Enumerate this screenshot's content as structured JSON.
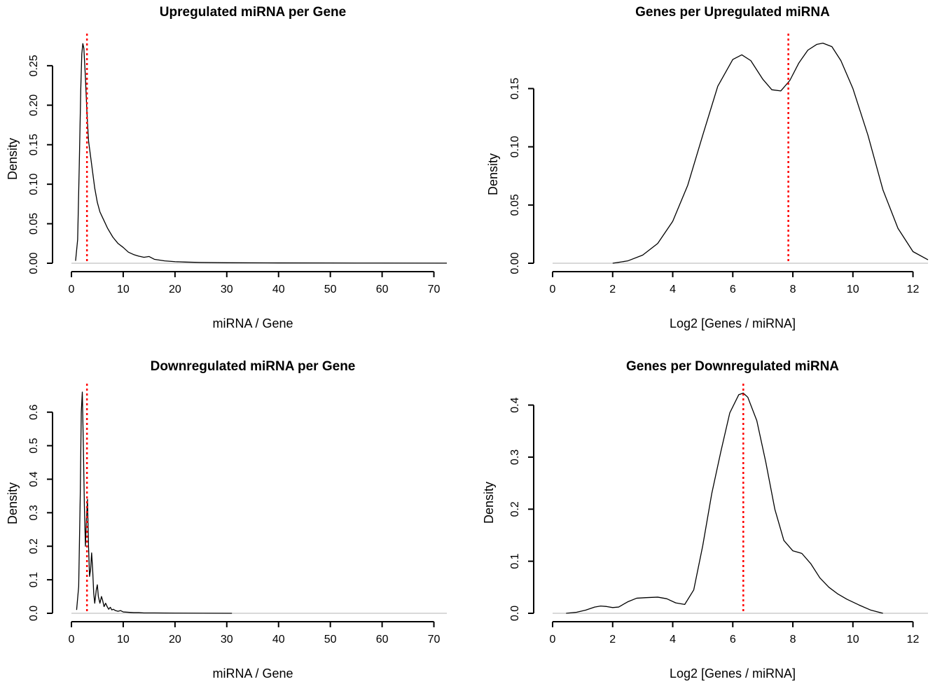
{
  "chart_data": [
    {
      "type": "line",
      "title": "Upregulated miRNA per Gene",
      "xlabel": "miRNA / Gene",
      "ylabel": "Density",
      "xlim": [
        0,
        72.5
      ],
      "ylim": [
        0,
        0.28
      ],
      "xticks": [
        0,
        10,
        20,
        30,
        40,
        50,
        60,
        70
      ],
      "xtick_labels": [
        "0",
        "10",
        "20",
        "30",
        "40",
        "50",
        "60",
        "70"
      ],
      "yticks": [
        0,
        0.05,
        0.1,
        0.15,
        0.2,
        0.25
      ],
      "ytick_labels": [
        "0.00",
        "0.05",
        "0.10",
        "0.15",
        "0.20",
        "0.25"
      ],
      "grid": false,
      "baseline": 0,
      "vline": 3.0,
      "series": [
        {
          "color": "#000000",
          "x": [
            0.8,
            1.2,
            1.5,
            1.8,
            2.0,
            2.2,
            2.4,
            2.7,
            3.0,
            3.3,
            3.6,
            4.0,
            4.5,
            5.0,
            5.5,
            6.0,
            7.0,
            8.0,
            9.0,
            10.0,
            11.0,
            12.0,
            13.0,
            14.0,
            15.0,
            16.0,
            18.0,
            20.0,
            22.0,
            25.0,
            30.0,
            40.0,
            50.0,
            60.0,
            72.5
          ],
          "y": [
            0.003,
            0.03,
            0.12,
            0.22,
            0.265,
            0.278,
            0.272,
            0.235,
            0.19,
            0.155,
            0.14,
            0.12,
            0.095,
            0.077,
            0.065,
            0.058,
            0.044,
            0.033,
            0.025,
            0.02,
            0.014,
            0.011,
            0.009,
            0.0075,
            0.0085,
            0.005,
            0.003,
            0.002,
            0.0015,
            0.001,
            0.0006,
            0.0004,
            0.0003,
            0.0002,
            0.0001
          ]
        }
      ]
    },
    {
      "type": "line",
      "title": "Genes per Upregulated miRNA",
      "xlabel": "Log2 [Genes / miRNA]",
      "ylabel": "Density",
      "xlim": [
        0,
        12.5
      ],
      "ylim": [
        0,
        0.19
      ],
      "xticks": [
        0,
        2,
        4,
        6,
        8,
        10,
        12
      ],
      "xtick_labels": [
        "0",
        "2",
        "4",
        "6",
        "8",
        "10",
        "12"
      ],
      "yticks": [
        0,
        0.05,
        0.1,
        0.15
      ],
      "ytick_labels": [
        "0.00",
        "0.05",
        "0.10",
        "0.15"
      ],
      "grid": false,
      "baseline": 0,
      "vline": 7.85,
      "series": [
        {
          "color": "#000000",
          "x": [
            2.0,
            2.5,
            3.0,
            3.5,
            4.0,
            4.5,
            5.0,
            5.5,
            6.0,
            6.3,
            6.6,
            7.0,
            7.3,
            7.6,
            7.9,
            8.2,
            8.5,
            8.8,
            9.0,
            9.3,
            9.6,
            10.0,
            10.5,
            11.0,
            11.5,
            12.0,
            12.5
          ],
          "y": [
            0.0,
            0.002,
            0.007,
            0.017,
            0.036,
            0.067,
            0.11,
            0.152,
            0.175,
            0.179,
            0.174,
            0.158,
            0.149,
            0.148,
            0.157,
            0.172,
            0.183,
            0.188,
            0.189,
            0.186,
            0.174,
            0.15,
            0.11,
            0.063,
            0.03,
            0.01,
            0.003
          ]
        }
      ]
    },
    {
      "type": "line",
      "title": "Downregulated miRNA per Gene",
      "xlabel": "miRNA / Gene",
      "ylabel": "Density",
      "xlim": [
        0,
        72.5
      ],
      "ylim": [
        0,
        0.66
      ],
      "xticks": [
        0,
        10,
        20,
        30,
        40,
        50,
        60,
        70
      ],
      "xtick_labels": [
        "0",
        "10",
        "20",
        "30",
        "40",
        "50",
        "60",
        "70"
      ],
      "yticks": [
        0,
        0.1,
        0.2,
        0.3,
        0.4,
        0.5,
        0.6
      ],
      "ytick_labels": [
        "0.0",
        "0.1",
        "0.2",
        "0.3",
        "0.4",
        "0.5",
        "0.6"
      ],
      "grid": false,
      "baseline": 0,
      "vline": 3.0,
      "series": [
        {
          "color": "#000000",
          "x": [
            1.0,
            1.4,
            1.7,
            1.9,
            2.1,
            2.3,
            2.5,
            2.7,
            2.9,
            3.1,
            3.3,
            3.5,
            3.7,
            3.9,
            4.1,
            4.3,
            4.5,
            4.8,
            5.0,
            5.2,
            5.5,
            5.8,
            6.0,
            6.3,
            6.6,
            6.9,
            7.2,
            7.5,
            7.8,
            8.1,
            8.5,
            9.0,
            9.5,
            10.0,
            11.0,
            12.0,
            13.0,
            14.0,
            16.0,
            20.0,
            25.0,
            31.0
          ],
          "y": [
            0.01,
            0.08,
            0.35,
            0.6,
            0.66,
            0.5,
            0.32,
            0.2,
            0.28,
            0.34,
            0.2,
            0.11,
            0.13,
            0.18,
            0.13,
            0.06,
            0.03,
            0.07,
            0.085,
            0.05,
            0.03,
            0.05,
            0.04,
            0.02,
            0.03,
            0.02,
            0.012,
            0.018,
            0.01,
            0.012,
            0.008,
            0.006,
            0.008,
            0.004,
            0.003,
            0.002,
            0.002,
            0.001,
            0.001,
            0.0005,
            0.0003,
            0.0
          ]
        }
      ]
    },
    {
      "type": "line",
      "title": "Genes per Downregulated miRNA",
      "xlabel": "Log2 [Genes / miRNA]",
      "ylabel": "Density",
      "xlim": [
        0,
        12.5
      ],
      "ylim": [
        0,
        0.425
      ],
      "xticks": [
        0,
        2,
        4,
        6,
        8,
        10,
        12
      ],
      "xtick_labels": [
        "0",
        "2",
        "4",
        "6",
        "8",
        "10",
        "12"
      ],
      "yticks": [
        0,
        0.1,
        0.2,
        0.3,
        0.4
      ],
      "ytick_labels": [
        "0.0",
        "0.1",
        "0.2",
        "0.3",
        "0.4"
      ],
      "grid": false,
      "baseline": 0,
      "vline": 6.35,
      "series": [
        {
          "color": "#000000",
          "x": [
            0.45,
            0.8,
            1.1,
            1.4,
            1.6,
            1.8,
            2.0,
            2.2,
            2.5,
            2.8,
            3.1,
            3.5,
            3.8,
            4.1,
            4.4,
            4.7,
            5.0,
            5.3,
            5.6,
            5.9,
            6.2,
            6.35,
            6.5,
            6.8,
            7.1,
            7.4,
            7.7,
            8.0,
            8.3,
            8.6,
            8.9,
            9.2,
            9.5,
            9.8,
            10.2,
            10.6,
            11.0
          ],
          "y": [
            0.0,
            0.002,
            0.006,
            0.012,
            0.014,
            0.013,
            0.011,
            0.012,
            0.022,
            0.029,
            0.03,
            0.031,
            0.028,
            0.02,
            0.017,
            0.045,
            0.13,
            0.23,
            0.31,
            0.385,
            0.42,
            0.423,
            0.415,
            0.37,
            0.29,
            0.2,
            0.14,
            0.12,
            0.115,
            0.095,
            0.068,
            0.05,
            0.037,
            0.027,
            0.016,
            0.006,
            0.0
          ]
        }
      ]
    }
  ]
}
